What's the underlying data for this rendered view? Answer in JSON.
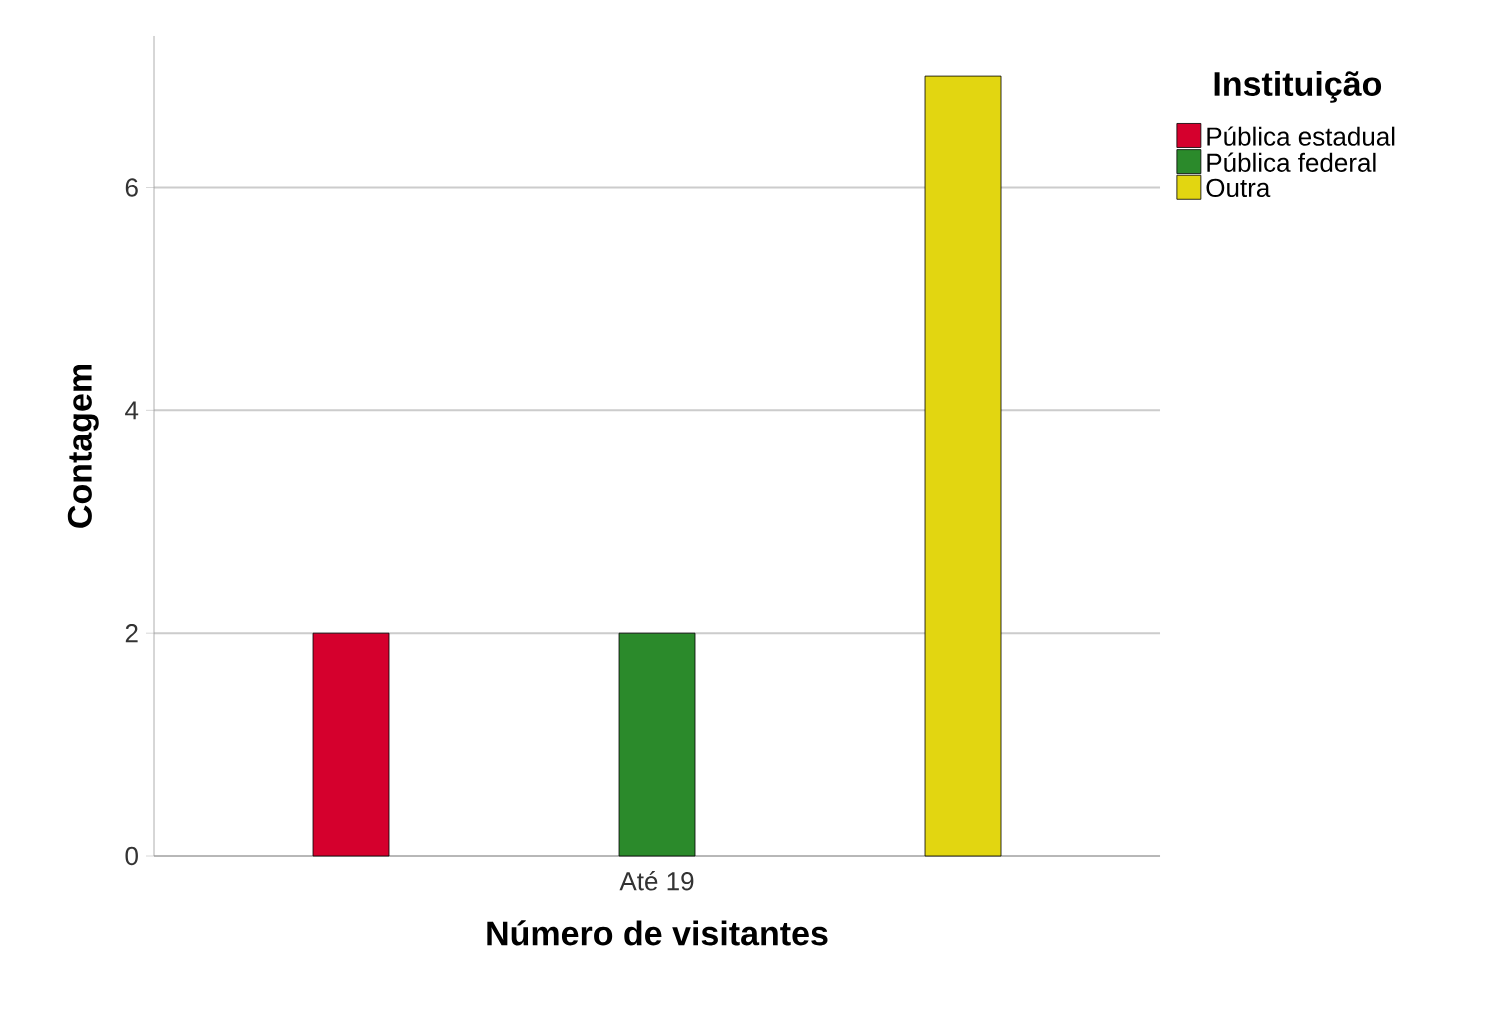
{
  "chart_data": {
    "type": "bar",
    "xlabel": "Número de visitantes",
    "ylabel": "Contagem",
    "legend_title": "Instituição",
    "categories": [
      "Até 19"
    ],
    "series": [
      {
        "name": "Pública estadual",
        "color": "#d5002d",
        "values": [
          2
        ]
      },
      {
        "name": "Pública federal",
        "color": "#2b8a2b",
        "values": [
          2
        ]
      },
      {
        "name": "Outra",
        "color": "#e2d611",
        "values": [
          7
        ]
      }
    ],
    "ylim": [
      0,
      7.36
    ],
    "yticks": [
      0,
      2,
      4,
      6
    ],
    "grid": "y",
    "legend": "right"
  }
}
